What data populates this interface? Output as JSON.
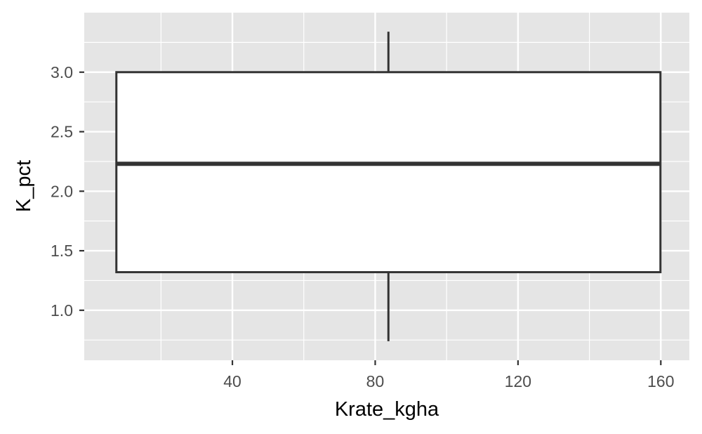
{
  "chart_data": {
    "type": "boxplot",
    "title": "",
    "xlabel": "Krate_kgha",
    "ylabel": "K_pct",
    "xlim": [
      -1.5,
      168
    ],
    "ylim": [
      0.58,
      3.5
    ],
    "x_ticks": [
      40,
      80,
      120,
      160
    ],
    "x_minor_ticks": [
      20,
      60,
      100,
      140
    ],
    "y_ticks": [
      1.0,
      1.5,
      2.0,
      2.5,
      3.0
    ],
    "y_minor_ticks": [
      0.75,
      1.25,
      1.75,
      2.25,
      2.75,
      3.25
    ],
    "x_tick_labels": [
      "40",
      "80",
      "120",
      "160"
    ],
    "y_tick_labels": [
      "1.0",
      "1.5",
      "2.0",
      "2.5",
      "3.0"
    ],
    "grid": true,
    "legend": "none",
    "box": {
      "x_min": 7.5,
      "x_max": 159.9,
      "x_center": 83.7,
      "whisker_low": 0.74,
      "q1": 1.32,
      "median": 2.23,
      "q3": 3.0,
      "whisker_high": 3.34
    },
    "colors": {
      "panel": "#e5e5e5",
      "grid": "#ffffff",
      "box_fill": "#ffffff",
      "box_line": "#333333",
      "tick_text": "#4d4d4d"
    }
  }
}
